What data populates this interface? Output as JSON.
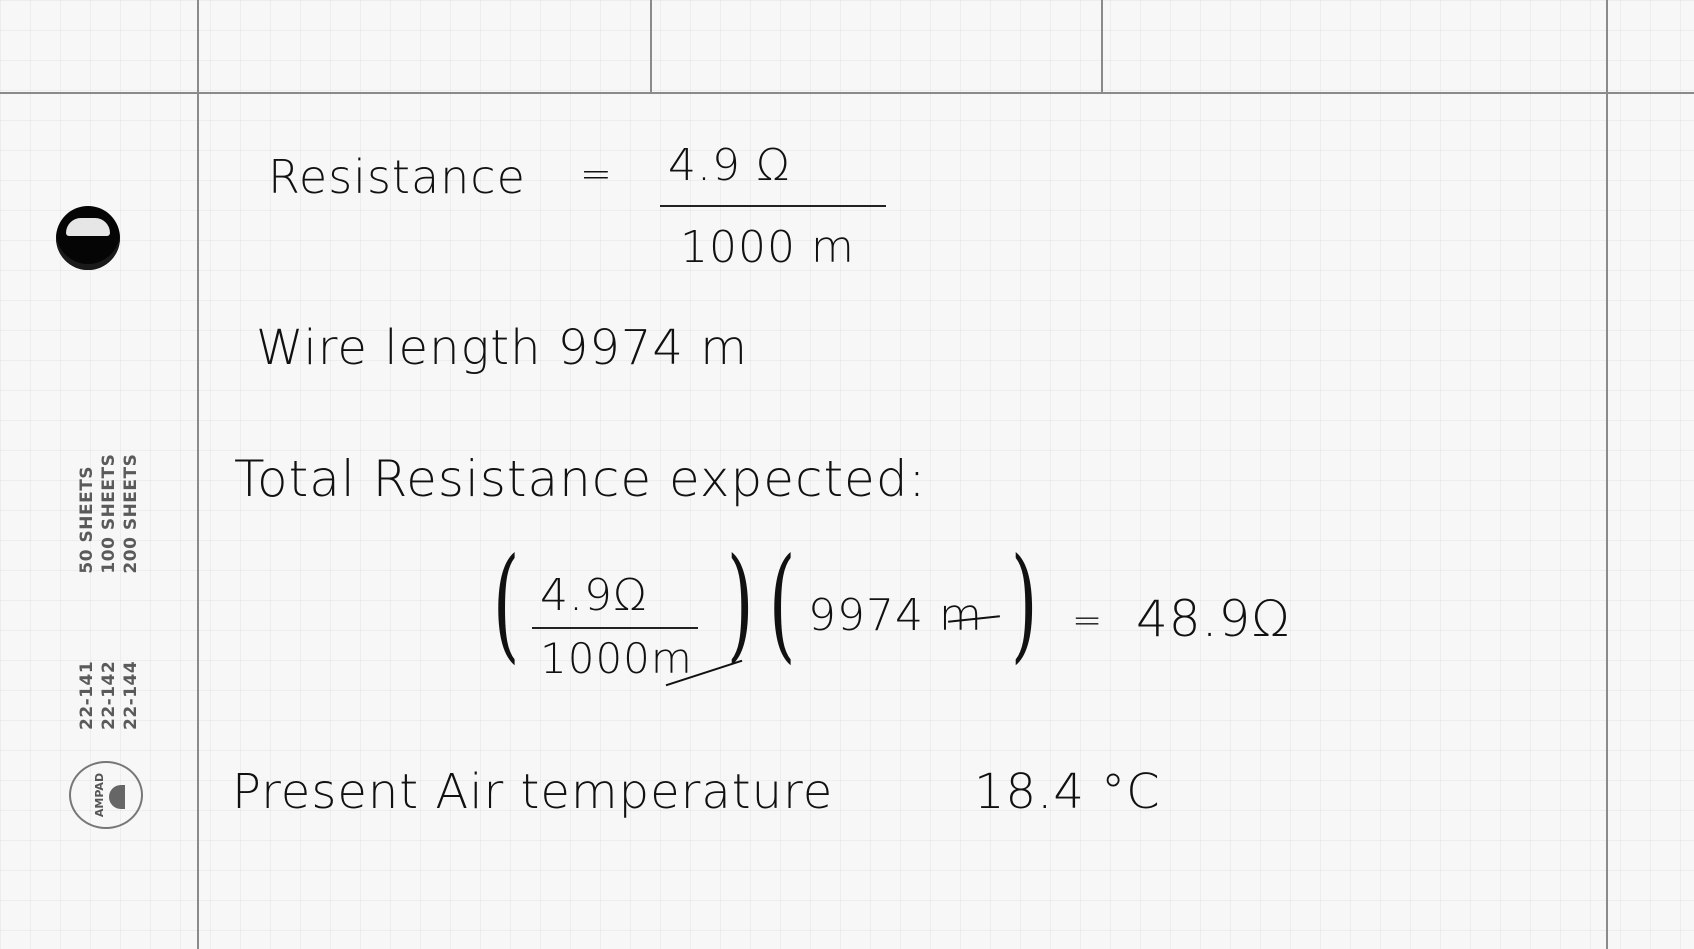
{
  "sidebar": {
    "spec_rows": [
      {
        "code": "22-141",
        "sheets": "50 SHEETS"
      },
      {
        "code": "22-142",
        "sheets": "100 SHEETS"
      },
      {
        "code": "22-144",
        "sheets": "200 SHEETS"
      }
    ],
    "brand": "AMPAD"
  },
  "notes": {
    "line1": {
      "label": "Resistance",
      "equals": "=",
      "numerator": "4.9 Ω",
      "denominator": "1000 m"
    },
    "line2": {
      "text": "Wire length 9974 m"
    },
    "line3": {
      "text": "Total Resistance expected:"
    },
    "line4": {
      "frac_numerator": "4.9Ω",
      "frac_denominator": "1000m",
      "second_term": "9974 m",
      "equals": "=",
      "result": "48.9Ω"
    },
    "line5": {
      "label": "Present Air temperature",
      "value": "18.4 °C"
    }
  }
}
